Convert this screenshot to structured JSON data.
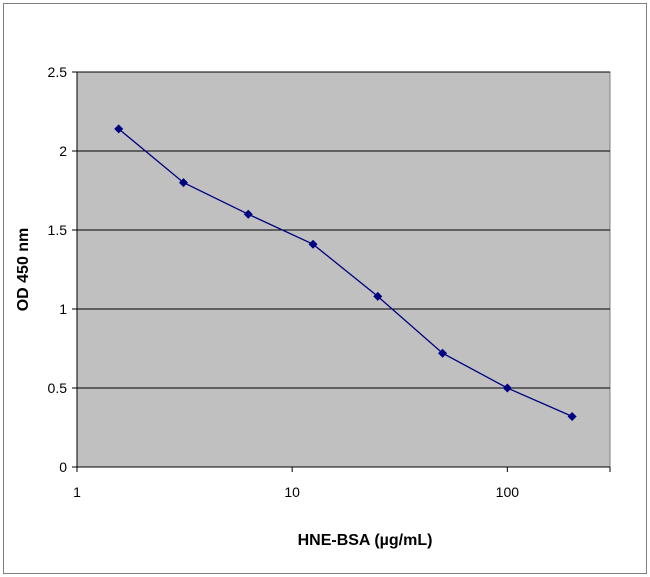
{
  "chart_data": {
    "type": "line",
    "xlabel": "HNE-BSA (µg/mL)",
    "ylabel": "OD 450 nm",
    "x_scale": "log",
    "xlim": [
      1,
      300
    ],
    "ylim": [
      0,
      2.5
    ],
    "x_ticks": [
      1,
      10,
      100
    ],
    "x_tick_labels": [
      "1",
      "10",
      "100"
    ],
    "y_ticks": [
      0,
      0.5,
      1,
      1.5,
      2,
      2.5
    ],
    "y_tick_labels": [
      "0",
      "0.5",
      "1",
      "1.5",
      "2",
      "2.5"
    ],
    "grid": "horizontal",
    "legend": "none",
    "plot_background": "#c0c0c0",
    "series": [
      {
        "color": "#000080",
        "marker": "diamond",
        "x": [
          1.5625,
          3.125,
          6.25,
          12.5,
          25,
          50,
          100,
          200
        ],
        "y": [
          2.14,
          1.8,
          1.6,
          1.41,
          1.08,
          0.72,
          0.5,
          0.32
        ]
      }
    ]
  }
}
